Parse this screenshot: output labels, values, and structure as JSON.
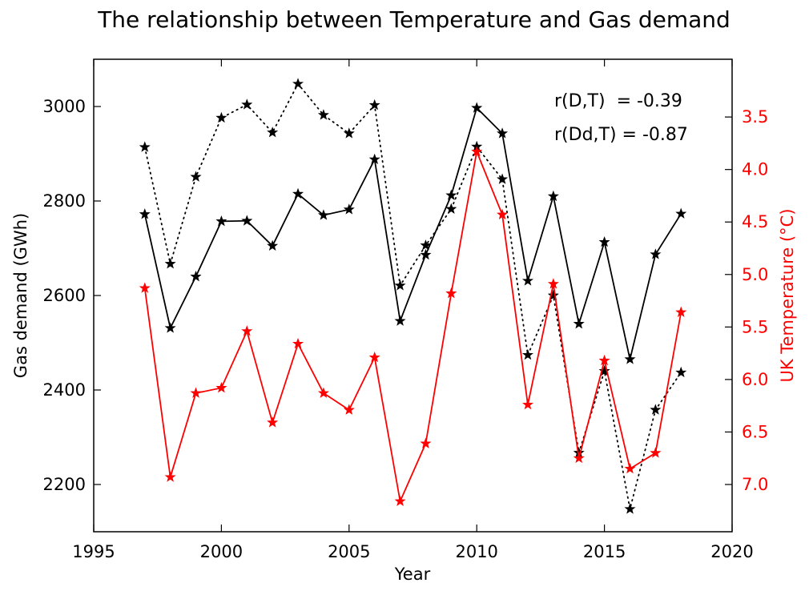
{
  "chart_data": {
    "type": "line",
    "title": "The relationship between Temperature and Gas demand",
    "xlabel": "Year",
    "ylabel_left": "Gas demand (GWh)",
    "ylabel_right": "UK Temperature (°C)",
    "xlim": [
      1995,
      2020
    ],
    "ylim_left": [
      2100,
      3100
    ],
    "ylim_right": [
      2.95,
      7.45
    ],
    "right_axis_inverted": true,
    "x_ticks": [
      "1995",
      "2000",
      "2005",
      "2010",
      "2015",
      "2020"
    ],
    "y_left_ticks": [
      "2200",
      "2400",
      "2600",
      "2800",
      "3000"
    ],
    "y_right_ticks": [
      "3.5",
      "4.0",
      "4.5",
      "5.0",
      "5.5",
      "6.0",
      "6.5",
      "7.0"
    ],
    "x": [
      1997,
      1998,
      1999,
      2000,
      2001,
      2002,
      2003,
      2004,
      2005,
      2006,
      2007,
      2008,
      2009,
      2010,
      2011,
      2012,
      2013,
      2014,
      2015,
      2016,
      2017,
      2018
    ],
    "series": [
      {
        "axis": "left",
        "style": "solid",
        "marker": "star",
        "color": "#000000",
        "values": [
          2772,
          2531,
          2640,
          2757,
          2758,
          2705,
          2815,
          2770,
          2782,
          2888,
          2546,
          2686,
          2812,
          2997,
          2943,
          2631,
          2810,
          2540,
          2713,
          2465,
          2687,
          2773
        ]
      },
      {
        "axis": "left",
        "style": "dotted",
        "marker": "star",
        "color": "#000000",
        "values": [
          2914,
          2667,
          2851,
          2976,
          3004,
          2945,
          3048,
          2982,
          2943,
          3003,
          2621,
          2706,
          2783,
          2915,
          2846,
          2474,
          2600,
          2267,
          2440,
          2148,
          2358,
          2437
        ]
      },
      {
        "axis": "right",
        "style": "solid",
        "marker": "star",
        "color": "#ff0000",
        "values": [
          5.13,
          6.93,
          6.13,
          6.08,
          5.54,
          6.41,
          5.66,
          6.13,
          6.29,
          5.79,
          7.16,
          6.61,
          5.18,
          3.83,
          4.43,
          6.24,
          5.09,
          6.75,
          5.82,
          6.85,
          6.7,
          5.36
        ]
      }
    ],
    "annotations": [
      "r(D,T)  = -0.39",
      "r(Dd,T) = -0.87"
    ],
    "grid": false
  }
}
